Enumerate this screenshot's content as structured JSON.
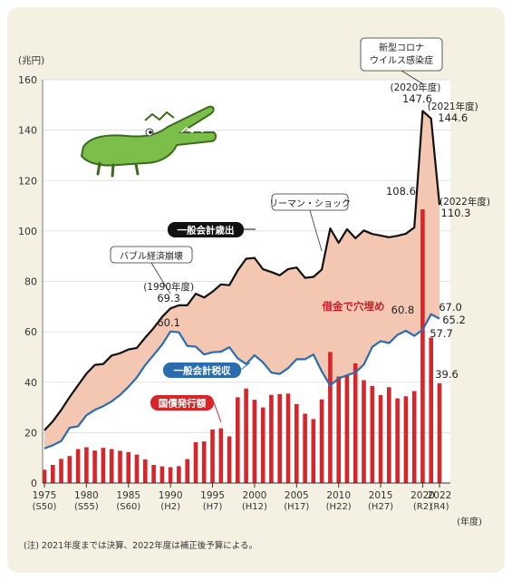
{
  "chart_data": {
    "type": "bar+line",
    "y_unit_label": "(兆円)",
    "x_unit_label": "(年度)",
    "ylim": [
      0,
      160
    ],
    "yticks": [
      0,
      20,
      40,
      60,
      80,
      100,
      120,
      140,
      160
    ],
    "x_range": [
      1975,
      2022
    ],
    "x_ticks": [
      {
        "year": 1975,
        "label": "1975",
        "sub": "(S50)"
      },
      {
        "year": 1980,
        "label": "1980",
        "sub": "(S55)"
      },
      {
        "year": 1985,
        "label": "1985",
        "sub": "(S60)"
      },
      {
        "year": 1990,
        "label": "1990",
        "sub": "(H2)"
      },
      {
        "year": 1995,
        "label": "1995",
        "sub": "(H7)"
      },
      {
        "year": 2000,
        "label": "2000",
        "sub": "(H12)"
      },
      {
        "year": 2005,
        "label": "2005",
        "sub": "(H17)"
      },
      {
        "year": 2010,
        "label": "2010",
        "sub": "(H22)"
      },
      {
        "year": 2015,
        "label": "2015",
        "sub": "(H27)"
      },
      {
        "year": 2020,
        "label": "2020",
        "sub": "(R2)"
      },
      {
        "year": 2022,
        "label": "2022",
        "sub": "(R4)"
      }
    ],
    "years": [
      1975,
      1976,
      1977,
      1978,
      1979,
      1980,
      1981,
      1982,
      1983,
      1984,
      1985,
      1986,
      1987,
      1988,
      1989,
      1990,
      1991,
      1992,
      1993,
      1994,
      1995,
      1996,
      1997,
      1998,
      1999,
      2000,
      2001,
      2002,
      2003,
      2004,
      2005,
      2006,
      2007,
      2008,
      2009,
      2010,
      2011,
      2012,
      2013,
      2014,
      2015,
      2016,
      2017,
      2018,
      2019,
      2020,
      2021,
      2022
    ],
    "series": [
      {
        "name": "一般会計歳出",
        "kind": "line",
        "color": "#111111",
        "values": [
          20.9,
          24.5,
          29.0,
          34.1,
          38.8,
          43.4,
          46.9,
          47.2,
          50.6,
          51.5,
          53.0,
          53.6,
          57.7,
          61.5,
          65.9,
          69.3,
          70.5,
          70.5,
          75.1,
          73.6,
          75.9,
          78.8,
          78.5,
          84.4,
          89.0,
          89.3,
          84.8,
          83.7,
          82.4,
          84.9,
          85.5,
          81.4,
          81.8,
          84.7,
          101.0,
          95.3,
          100.7,
          97.1,
          100.2,
          98.8,
          98.2,
          97.5,
          98.1,
          98.9,
          101.4,
          147.6,
          144.6,
          110.3
        ]
      },
      {
        "name": "一般会計税収",
        "kind": "line",
        "color": "#2a6cb0",
        "values": [
          13.7,
          15.0,
          16.7,
          21.9,
          22.5,
          26.9,
          29.0,
          30.5,
          32.4,
          34.9,
          38.2,
          41.9,
          46.8,
          50.8,
          54.9,
          60.1,
          59.8,
          54.4,
          54.1,
          51.0,
          51.9,
          52.1,
          53.9,
          49.4,
          47.2,
          50.7,
          47.9,
          43.8,
          43.3,
          45.6,
          49.1,
          49.1,
          51.0,
          44.3,
          38.7,
          41.5,
          42.8,
          43.9,
          47.0,
          54.0,
          56.3,
          55.5,
          58.8,
          60.4,
          58.4,
          60.8,
          67.0,
          65.2
        ]
      },
      {
        "name": "国債発行額",
        "kind": "bar",
        "color": "#d7262a",
        "values": [
          5.3,
          7.2,
          9.6,
          10.7,
          13.5,
          14.2,
          12.9,
          14.0,
          13.5,
          12.8,
          12.3,
          11.3,
          9.4,
          7.2,
          6.6,
          6.3,
          6.7,
          9.5,
          16.2,
          16.5,
          21.2,
          21.7,
          18.5,
          34.0,
          37.5,
          33.0,
          30.0,
          35.0,
          35.3,
          35.5,
          31.3,
          27.5,
          25.4,
          33.2,
          52.0,
          42.3,
          42.8,
          47.5,
          40.8,
          38.5,
          34.9,
          38.0,
          33.6,
          34.4,
          36.5,
          108.6,
          57.7,
          39.6
        ]
      }
    ],
    "annotations": {
      "covid_label": [
        "新型コロナ",
        "ウイルス感染症"
      ],
      "bubble_label": "バブル経済崩壊",
      "lehman_label": "リーマン・ショック",
      "y1990_year": "(1990年度)",
      "y1990_value": "69.3",
      "tax1990_value": "60.1",
      "y2020_year": "(2020年度)",
      "y2020_value": "147.6",
      "y2021_year": "(2021年度)",
      "y2021_value": "144.6",
      "y2022_year": "(2022年度)",
      "y2022_value": "110.3",
      "bond2020_value": "108.6",
      "tax2020_value": "60.8",
      "tax2021_value": "67.0",
      "tax2022_value": "65.2",
      "bond2021_value": "57.7",
      "bond2022_value": "39.6",
      "gap_label": "借金で穴埋め",
      "legend_expenditure": "一般会計歳出",
      "legend_tax": "一般会計税収",
      "legend_bond": "国債発行額"
    },
    "footnote": "(注) 2021年度までは決算、2022年度は補正後予算による。"
  }
}
